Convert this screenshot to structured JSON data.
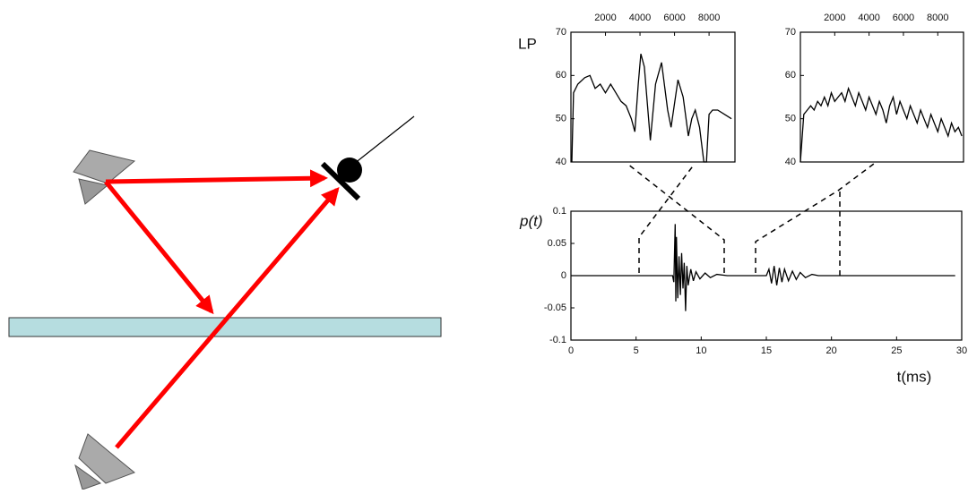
{
  "chart_data": [
    {
      "type": "line",
      "y_label": "LP",
      "color": "#000000",
      "x": [
        50,
        150,
        400,
        800,
        1100,
        1400,
        1700,
        2000,
        2300,
        2600,
        2900,
        3200,
        3500,
        3700,
        3900,
        4050,
        4250,
        4600,
        4900,
        5250,
        5600,
        5800,
        6200,
        6500,
        6800,
        7000,
        7200,
        7450,
        7700,
        7850,
        8000,
        8200,
        8500,
        8900,
        9300
      ],
      "values": [
        40,
        56,
        58,
        59.5,
        60,
        57,
        58,
        56,
        58,
        56,
        54,
        53,
        50,
        47,
        58,
        65,
        62,
        45,
        58,
        63,
        52,
        48,
        59,
        55,
        46,
        50,
        52,
        48,
        40,
        40,
        51,
        52,
        52,
        51,
        50
      ],
      "xlim": [
        0,
        9500
      ],
      "xticks": [
        2000,
        4000,
        6000,
        8000
      ],
      "ylim": [
        40,
        70
      ],
      "yticks": [
        40,
        50,
        60,
        70
      ]
    },
    {
      "type": "line",
      "color": "#000000",
      "x": [
        0,
        200,
        400,
        600,
        800,
        1000,
        1200,
        1400,
        1600,
        1800,
        2000,
        2200,
        2400,
        2600,
        2800,
        3000,
        3200,
        3400,
        3600,
        3800,
        4000,
        4200,
        4400,
        4600,
        4800,
        5000,
        5200,
        5400,
        5600,
        5800,
        6000,
        6200,
        6400,
        6600,
        6800,
        7000,
        7200,
        7400,
        7600,
        7800,
        8000,
        8200,
        8400,
        8600,
        8800,
        9000,
        9200,
        9400
      ],
      "values": [
        40,
        51,
        52,
        53,
        52,
        54,
        53,
        55,
        53,
        56,
        54,
        55,
        56,
        54,
        57,
        55,
        53,
        56,
        54,
        52,
        55,
        53,
        51,
        54,
        52,
        49,
        53,
        55,
        51,
        54,
        52,
        50,
        53,
        51,
        49,
        52,
        50,
        48,
        51,
        49,
        47,
        50,
        48,
        46,
        49,
        47,
        48,
        46
      ],
      "xlim": [
        0,
        9500
      ],
      "xticks": [
        2000,
        4000,
        6000,
        8000
      ],
      "ylim": [
        40,
        70
      ],
      "yticks": [
        40,
        50,
        60,
        70
      ]
    },
    {
      "type": "line",
      "y_label": "p(t)",
      "x_label": "t(ms)",
      "color": "#000000",
      "x": [
        0,
        7.8,
        7.9,
        8.0,
        8.05,
        8.1,
        8.2,
        8.3,
        8.4,
        8.5,
        8.6,
        8.7,
        8.8,
        8.9,
        9.0,
        9.2,
        9.4,
        9.6,
        9.9,
        10.3,
        10.7,
        11.2,
        12,
        15,
        15.2,
        15.4,
        15.6,
        15.8,
        16,
        16.2,
        16.4,
        16.7,
        17,
        17.3,
        17.6,
        18,
        18.5,
        19,
        29.5
      ],
      "values": [
        0,
        0,
        -0.01,
        0.08,
        -0.04,
        0.06,
        -0.035,
        0.03,
        -0.03,
        0.035,
        -0.02,
        0.02,
        -0.055,
        0.015,
        -0.015,
        0.01,
        -0.008,
        0.006,
        -0.005,
        0.004,
        -0.003,
        0.002,
        0,
        0,
        0.01,
        -0.012,
        0.015,
        -0.015,
        0.012,
        -0.01,
        0.01,
        -0.008,
        0.007,
        -0.006,
        0.005,
        -0.003,
        0.002,
        0,
        0
      ],
      "xlim": [
        0,
        30
      ],
      "xticks": [
        0,
        5,
        10,
        15,
        20,
        25,
        30
      ],
      "ylim": [
        -0.1,
        0.1
      ],
      "yticks": [
        -0.1,
        -0.05,
        0,
        0.05,
        0.1
      ]
    }
  ]
}
